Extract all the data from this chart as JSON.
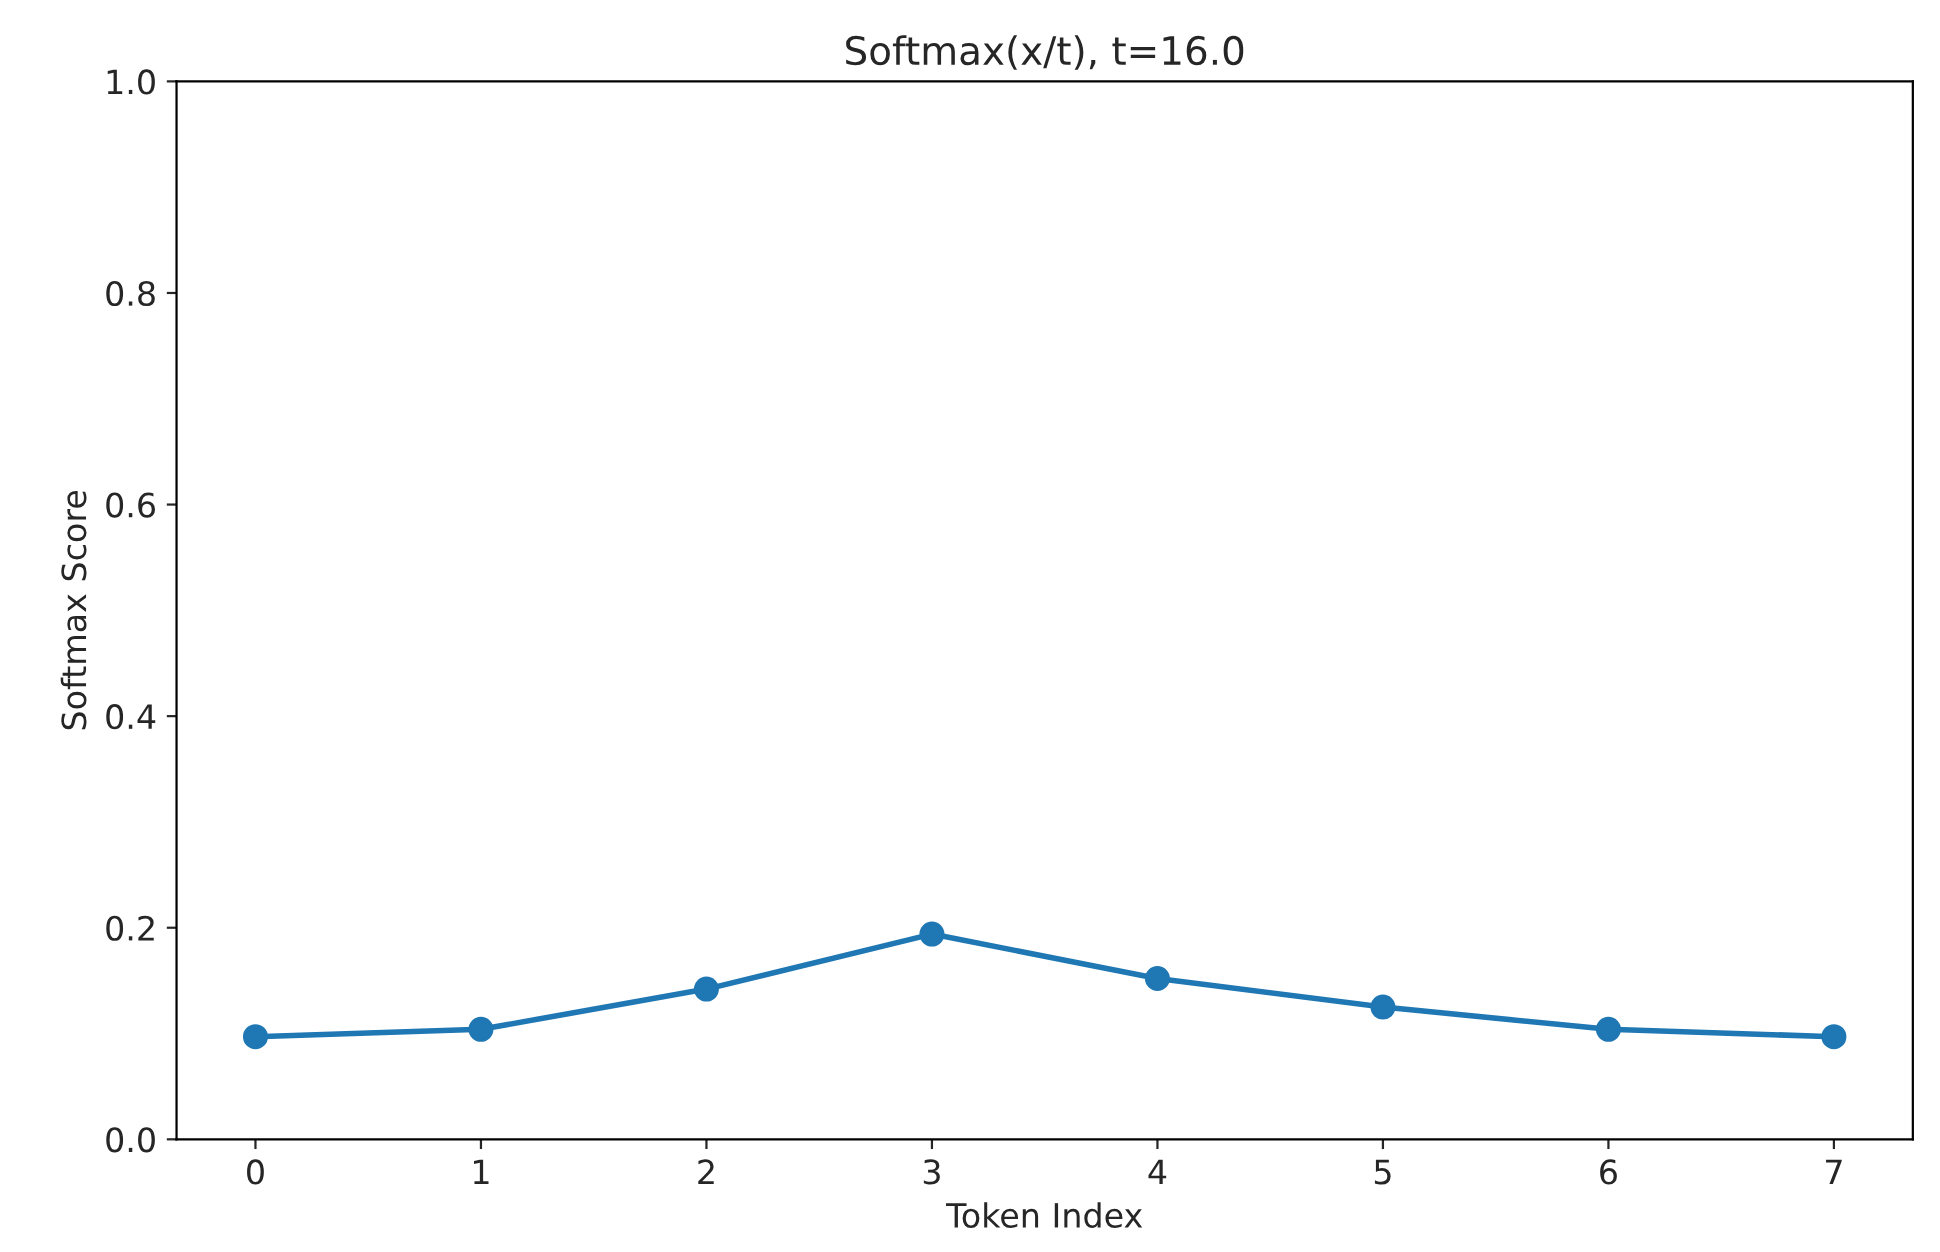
{
  "chart_data": {
    "type": "line",
    "title": "Softmax(x/t), t=16.0",
    "xlabel": "Token Index",
    "ylabel": "Softmax Score",
    "x": [
      0,
      1,
      2,
      3,
      4,
      5,
      6,
      7
    ],
    "series": [
      {
        "color": "#1f77b4",
        "values": [
          0.097,
          0.104,
          0.142,
          0.194,
          0.152,
          0.125,
          0.104,
          0.097
        ]
      }
    ],
    "marker": "circle",
    "line_style": "solid",
    "xlim": [
      -0.35,
      7.35
    ],
    "xticks": [
      0,
      1,
      2,
      3,
      4,
      5,
      6,
      7
    ],
    "ylim": [
      0.0,
      1.0
    ],
    "yticks": [
      {
        "value": 0.0,
        "label": "0.0"
      },
      {
        "value": 0.2,
        "label": "0.2"
      },
      {
        "value": 0.4,
        "label": "0.4"
      },
      {
        "value": 0.6,
        "label": "0.6"
      },
      {
        "value": 0.8,
        "label": "0.8"
      },
      {
        "value": 1.0,
        "label": "1.0"
      }
    ],
    "grid": false,
    "legend": false
  }
}
